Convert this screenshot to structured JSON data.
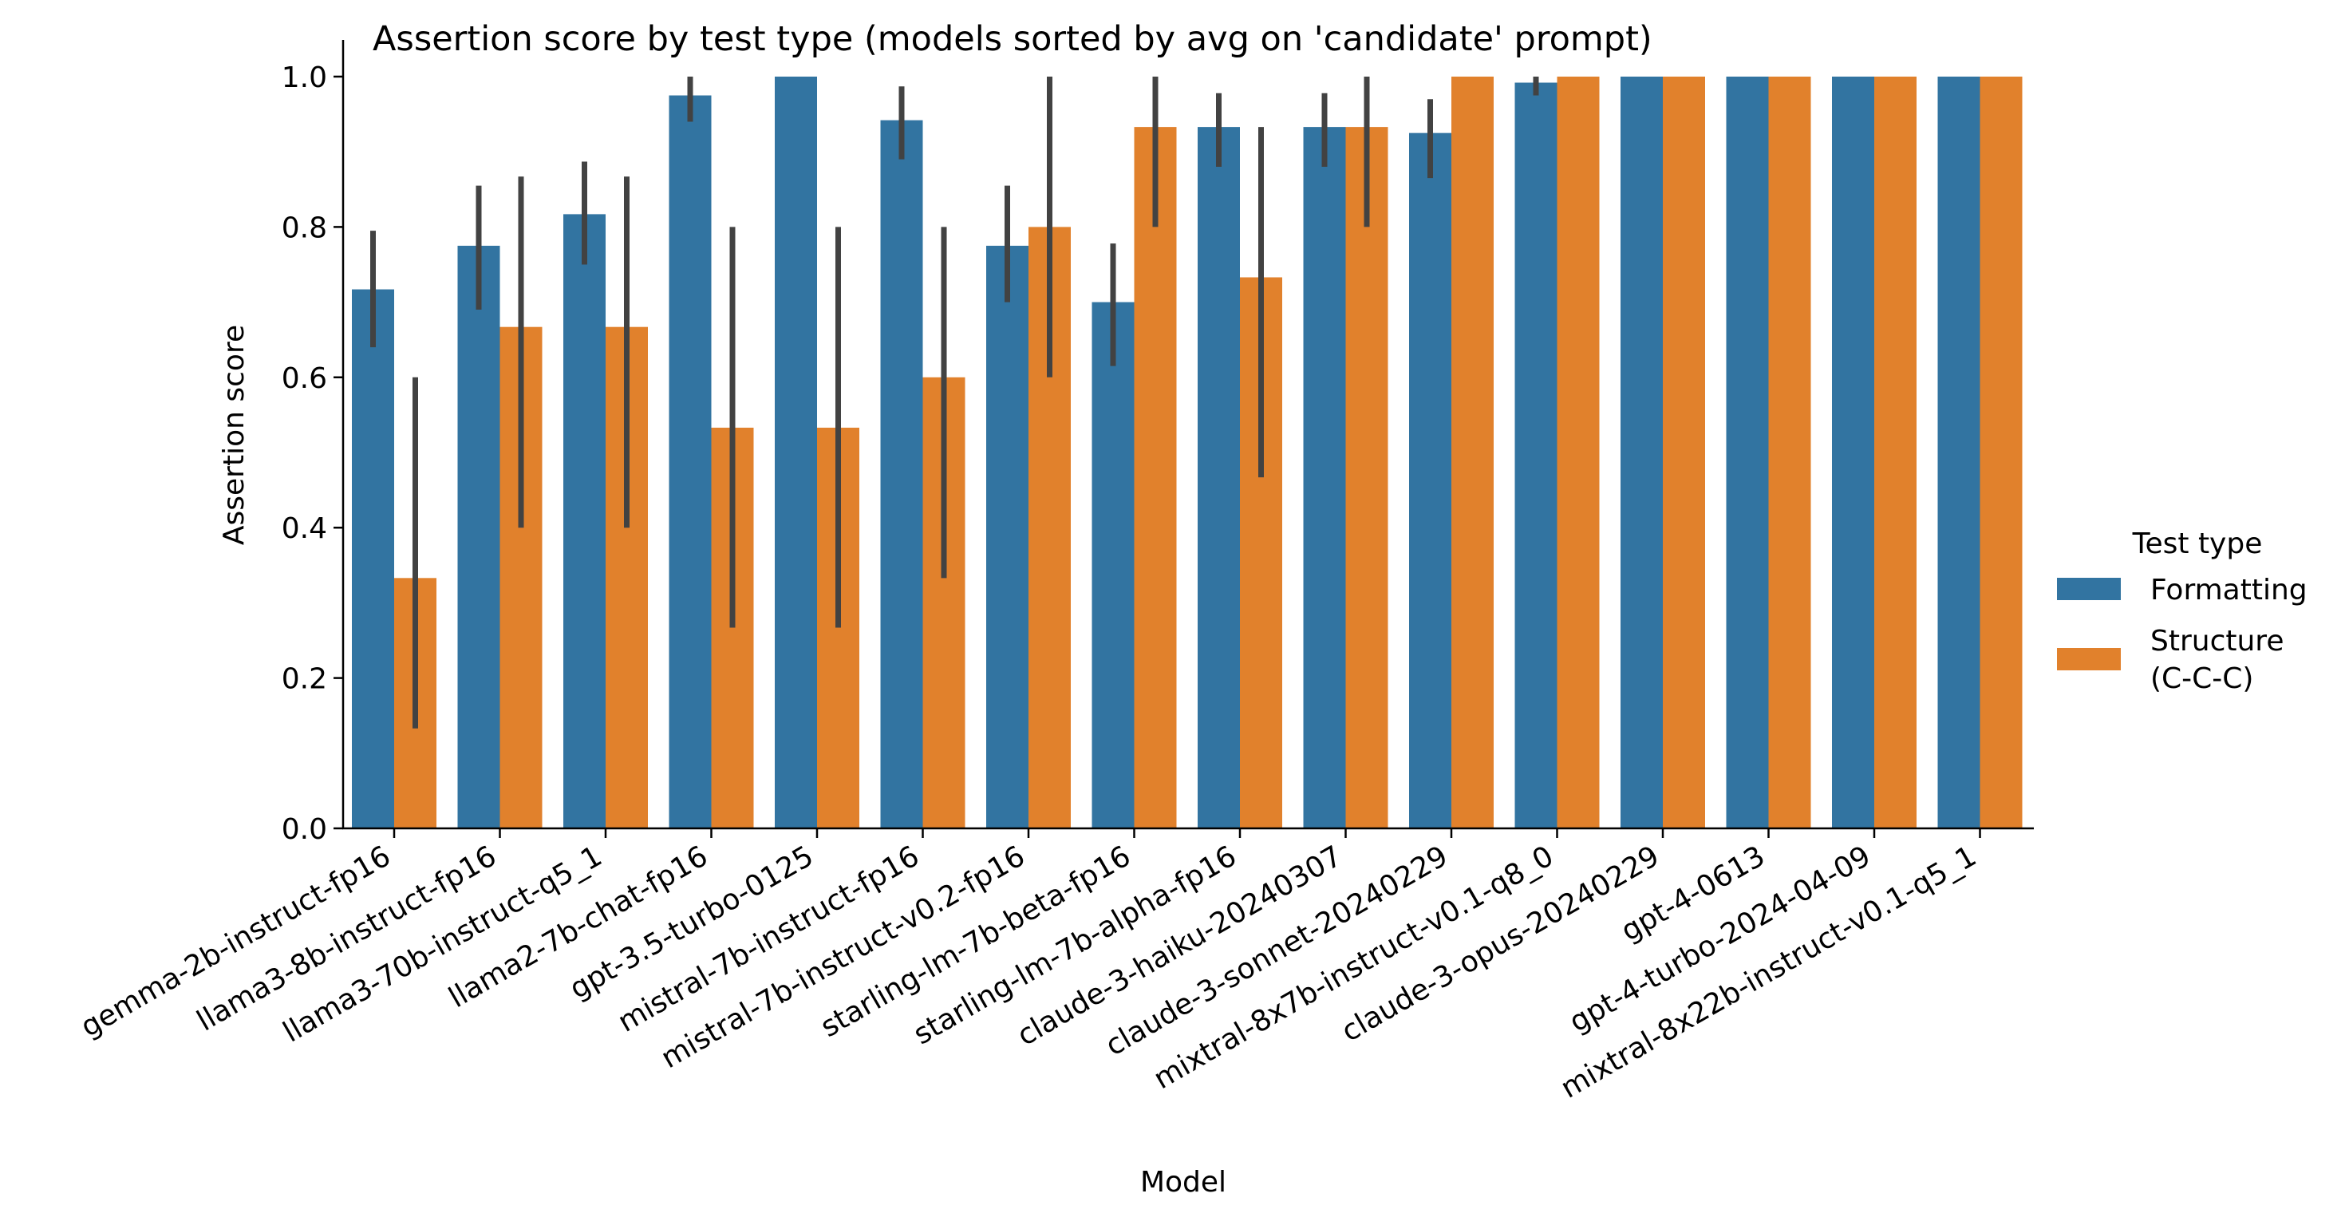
{
  "chart_data": {
    "type": "bar",
    "title": "Assertion score by test type (models sorted by avg on 'candidate' prompt)",
    "xlabel": "Model",
    "ylabel": "Assertion score",
    "ylim": [
      0,
      1.05
    ],
    "yticks": [
      0.0,
      0.2,
      0.4,
      0.6,
      0.8,
      1.0
    ],
    "ytick_labels": [
      "0.0",
      "0.2",
      "0.4",
      "0.6",
      "0.8",
      "1.0"
    ],
    "grid": false,
    "legend": {
      "title": "Test type",
      "placement": "center-right outside"
    },
    "categories": [
      "gemma-2b-instruct-fp16",
      "llama3-8b-instruct-fp16",
      "llama3-70b-instruct-q5_1",
      "llama2-7b-chat-fp16",
      "gpt-3.5-turbo-0125",
      "mistral-7b-instruct-fp16",
      "mistral-7b-instruct-v0.2-fp16",
      "starling-lm-7b-beta-fp16",
      "starling-lm-7b-alpha-fp16",
      "claude-3-haiku-20240307",
      "claude-3-sonnet-20240229",
      "mixtral-8x7b-instruct-v0.1-q8_0",
      "claude-3-opus-20240229",
      "gpt-4-0613",
      "gpt-4-turbo-2024-04-09",
      "mixtral-8x22b-instruct-v0.1-q5_1"
    ],
    "series": [
      {
        "name": "Formatting",
        "legend_lines": [
          "Formatting"
        ],
        "color": "#3274a1",
        "values": [
          0.717,
          0.775,
          0.817,
          0.975,
          1.0,
          0.942,
          0.775,
          0.7,
          0.933,
          0.933,
          0.925,
          0.992,
          1.0,
          1.0,
          1.0,
          1.0
        ],
        "ci_low": [
          0.64,
          0.69,
          0.75,
          0.94,
          null,
          0.89,
          0.7,
          0.615,
          0.88,
          0.88,
          0.865,
          0.975,
          null,
          null,
          null,
          null
        ],
        "ci_high": [
          0.795,
          0.855,
          0.887,
          1.0,
          null,
          0.987,
          0.855,
          0.778,
          0.978,
          0.978,
          0.97,
          1.0,
          null,
          null,
          null,
          null
        ]
      },
      {
        "name": "Structure (C-C-C)",
        "legend_lines": [
          "Structure",
          "(C-C-C)"
        ],
        "color": "#e1812c",
        "values": [
          0.333,
          0.667,
          0.667,
          0.533,
          0.533,
          0.6,
          0.8,
          0.933,
          0.733,
          0.933,
          1.0,
          1.0,
          1.0,
          1.0,
          1.0,
          1.0
        ],
        "ci_low": [
          0.133,
          0.4,
          0.4,
          0.267,
          0.267,
          0.333,
          0.6,
          0.8,
          0.467,
          0.8,
          null,
          null,
          null,
          null,
          null,
          null
        ],
        "ci_high": [
          0.6,
          0.867,
          0.867,
          0.8,
          0.8,
          0.8,
          1.0,
          1.0,
          0.933,
          1.0,
          null,
          null,
          null,
          null,
          null,
          null
        ]
      }
    ]
  }
}
